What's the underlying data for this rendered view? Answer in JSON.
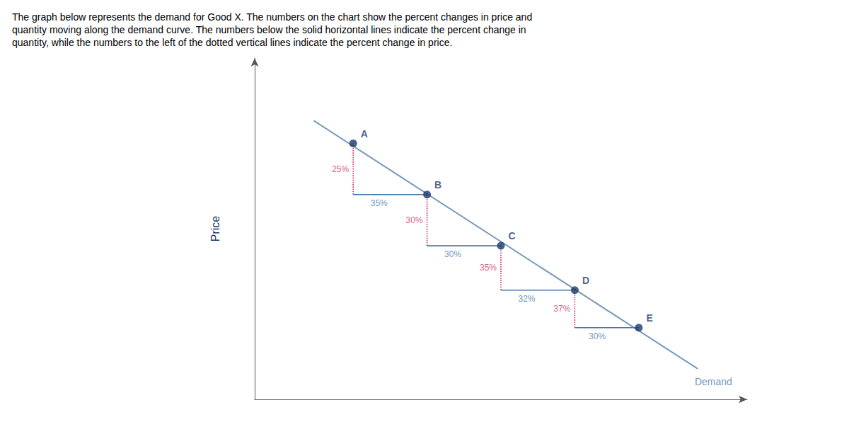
{
  "chart_data": {
    "type": "scatter",
    "title": "The graph below represents the demand for Good X. The numbers on the chart show the percent changes in price and\nquantity moving along the demand curve. The numbers below the solid horizontal lines indicate the percent change in\nquantity, while the numbers to the left of the dotted vertical lines indicate the percent change in price.",
    "ylabel": "Price",
    "xlim": [
      0,
      10.0
    ],
    "ylim": [
      0,
      10.0
    ],
    "tick_labels": false,
    "grid": false,
    "points": {
      "names": [
        "A",
        "B",
        "C",
        "D",
        "E"
      ],
      "x": [
        2.0,
        3.5,
        5.0,
        6.5,
        7.8
      ],
      "values": [
        7.5,
        6.0,
        4.5,
        3.2,
        2.1
      ],
      "color": "#1a3a6b"
    },
    "demand": {
      "name": "Demand",
      "x": [
        1.2,
        9.0
      ],
      "values": [
        8.16548,
        0.89347
      ],
      "color": "#7799bb"
    },
    "segments": [
      {
        "from": "A",
        "to": "B",
        "price_label": "25%",
        "quantity_label": "35%"
      },
      {
        "from": "B",
        "to": "C",
        "price_label": "30%",
        "quantity_label": "30%"
      },
      {
        "from": "C",
        "to": "D",
        "price_label": "35%",
        "quantity_label": "32%"
      },
      {
        "from": "D",
        "to": "E",
        "price_label": "37%",
        "quantity_label": "30%"
      }
    ],
    "quantity_line": {
      "color": "#4477aa",
      "line_style": "solid"
    },
    "price_line": {
      "color": "#cc3366",
      "line_style": "dotted"
    }
  }
}
